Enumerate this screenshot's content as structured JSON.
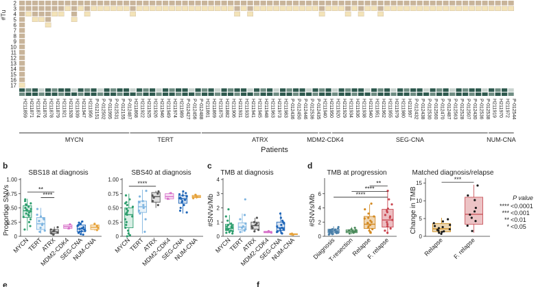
{
  "figure": {
    "heatmap": {
      "row_axis_label": "#Tu",
      "row_numbers": [
        "2",
        "3",
        "4",
        "5",
        "6",
        "7",
        "8",
        "9",
        "10",
        "11",
        "12",
        "13",
        "14",
        "15",
        "16",
        "17"
      ],
      "xlabel": "Patients",
      "colors": {
        "tan": "#c8b49a",
        "light": "#f3e3b8",
        "dark": "#2f5a4f",
        "mid": "#6f8d83",
        "pale": "#c9d3cf"
      },
      "groups": [
        {
          "name": "MYCN",
          "patients": [
            "H211859",
            "H211871",
            "H211874",
            "H211876",
            "H211878",
            "H211879",
            "H211921",
            "H211928",
            "H211939",
            "H211947",
            "H211956",
            "P-012151",
            "P-012502",
            "P-011995",
            "P-012531",
            "P-012155",
            "P-012487"
          ],
          "tumors": [
            16,
            3,
            4,
            4,
            5,
            3,
            3,
            2,
            4,
            2,
            3,
            2,
            2,
            2,
            2,
            2,
            2
          ]
        },
        {
          "name": "TERT",
          "patients": [
            "H211868",
            "H211922",
            "H211925",
            "H211926",
            "H211946",
            "H211949",
            "H211974",
            "H211989",
            "P-012427",
            "P-012456",
            "P-012488"
          ],
          "tumors": [
            3,
            2,
            2,
            2,
            2,
            2,
            2,
            2,
            2,
            2,
            2
          ]
        },
        {
          "name": "ATRX",
          "patients": [
            "H211861",
            "H211869",
            "H211875",
            "H211882",
            "H211906",
            "H211931",
            "H211933",
            "H211941",
            "H211945",
            "H211948",
            "H211963",
            "H211973",
            "H211983",
            "P-012436",
            "P-012450",
            "P-012446",
            "P-012536",
            "P-012435"
          ],
          "tumors": [
            2,
            2,
            2,
            2,
            2,
            3,
            2,
            3,
            2,
            2,
            2,
            2,
            2,
            2,
            2,
            2,
            2,
            2
          ]
        },
        {
          "name": "MDM2-CDK4",
          "patients": [
            "H211940",
            "H211950"
          ],
          "tumors": [
            3,
            2
          ]
        },
        {
          "name": "SEG-CNA",
          "patients": [
            "H211920",
            "H211929",
            "H211934",
            "H211936",
            "H211938",
            "H211940",
            "H211951",
            "H211962",
            "H211955",
            "H211979",
            "H211980",
            "H211997",
            "P-012432",
            "P-012438",
            "P-012530",
            "P-012560",
            "P-012470",
            "P-012487",
            "P-012563",
            "P-012528",
            "P-012507",
            "P-012430",
            "P-012536",
            "P-012538"
          ],
          "tumors": [
            2,
            2,
            3,
            2,
            3,
            2,
            2,
            3,
            2,
            2,
            2,
            2,
            2,
            2,
            2,
            2,
            2,
            2,
            2,
            2,
            2,
            2,
            2,
            2
          ]
        },
        {
          "name": "NUM-CNA",
          "patients": [
            "H211919",
            "H211970",
            "H211972",
            "P-012544"
          ],
          "tumors": [
            2,
            2,
            2,
            2
          ]
        }
      ]
    },
    "panels": [
      {
        "letter": "b",
        "title": "SBS18 at diagnosis",
        "ylabel": "Proportion SNVs"
      },
      {
        "letter": "",
        "title": "SBS40 at diagnosis",
        "ylabel": ""
      },
      {
        "letter": "c",
        "title": "TMB at diagnosis",
        "ylabel": "#SNVs/Mb"
      },
      {
        "letter": "d",
        "title": "TMB at progression",
        "ylabel": "#SNVs/Mb"
      },
      {
        "letter": "",
        "title": "Matched diagnosis/relapse",
        "ylabel": "Change in TMB"
      }
    ],
    "legend": {
      "title": "P value",
      "entries": [
        {
          "stars": "****",
          "label": "<0.0001"
        },
        {
          "stars": "***",
          "label": "<0.001"
        },
        {
          "stars": "**",
          "label": "<0.01"
        },
        {
          "stars": "*",
          "label": "<0.05"
        }
      ]
    },
    "bottom_letters": [
      "e",
      "f"
    ]
  },
  "chart_data": [
    {
      "type": "box",
      "title": "SBS18 at diagnosis",
      "ylabel": "Proportion SNVs",
      "categories": [
        "MYCN",
        "TERT",
        "ATRX",
        "MDM2-CDK4",
        "SEG-CNA",
        "NUM-CNA"
      ],
      "colors": [
        "#2e9e6e",
        "#7fb5e0",
        "#555555",
        "#d66ec8",
        "#1f66b8",
        "#e6a23a"
      ],
      "ylim": [
        0,
        1.0
      ],
      "yticks": [
        0,
        0.25,
        0.5,
        0.75,
        1.0
      ],
      "ytick_labels": [
        "0",
        "0.25",
        "0.50",
        "0.75",
        "1.00"
      ],
      "boxes": [
        {
          "q1": 0.33,
          "median": 0.45,
          "q3": 0.54,
          "lo": 0.1,
          "hi": 0.66
        },
        {
          "q1": 0.12,
          "median": 0.22,
          "q3": 0.33,
          "lo": 0.05,
          "hi": 0.5
        },
        {
          "q1": 0.05,
          "median": 0.08,
          "q3": 0.12,
          "lo": 0.02,
          "hi": 0.17
        },
        {
          "q1": 0.14,
          "median": 0.17,
          "q3": 0.2,
          "lo": 0.12,
          "hi": 0.21
        },
        {
          "q1": 0.08,
          "median": 0.13,
          "q3": 0.2,
          "lo": 0.02,
          "hi": 0.27
        },
        {
          "q1": 0.12,
          "median": 0.16,
          "q3": 0.2,
          "lo": 0.1,
          "hi": 0.22
        }
      ],
      "points": [
        [
          0.62,
          0.58,
          0.55,
          0.52,
          0.5,
          0.48,
          0.47,
          0.46,
          0.45,
          0.44,
          0.42,
          0.4,
          0.38,
          0.36,
          0.34,
          0.3,
          0.25,
          0.18,
          0.12,
          0.65,
          0.56
        ],
        [
          0.48,
          0.35,
          0.3,
          0.27,
          0.22,
          0.2,
          0.15,
          0.1,
          0.08,
          0.38,
          0.32
        ],
        [
          0.16,
          0.12,
          0.09,
          0.07,
          0.05,
          0.03,
          0.11
        ],
        [
          0.21,
          0.14
        ],
        [
          0.26,
          0.24,
          0.22,
          0.2,
          0.18,
          0.16,
          0.14,
          0.12,
          0.1,
          0.08,
          0.06,
          0.04,
          0.03,
          0.13,
          0.09
        ],
        [
          0.22,
          0.18,
          0.15,
          0.11
        ]
      ],
      "significance": [
        {
          "from": 0,
          "to": 2,
          "label": "**",
          "y": 0.78
        },
        {
          "from": 1,
          "to": 2,
          "label": "****",
          "y": 0.68
        }
      ]
    },
    {
      "type": "box",
      "title": "SBS40 at diagnosis",
      "ylabel": "",
      "categories": [
        "MYCN",
        "TERT",
        "ATRX",
        "MDM2-CDK4",
        "SEG-CNA",
        "NUM-CNA"
      ],
      "colors": [
        "#2e9e6e",
        "#7fb5e0",
        "#555555",
        "#d66ec8",
        "#1f66b8",
        "#e6a23a"
      ],
      "ylim": [
        0,
        1.0
      ],
      "yticks": [
        0,
        0.25,
        0.5,
        0.75,
        1.0
      ],
      "ytick_labels": [
        "0",
        "0.25",
        "0.50",
        "0.75",
        "1.00"
      ],
      "boxes": [
        {
          "q1": 0.15,
          "median": 0.38,
          "q3": 0.5,
          "lo": 0.0,
          "hi": 0.75
        },
        {
          "q1": 0.42,
          "median": 0.52,
          "q3": 0.62,
          "lo": 0.05,
          "hi": 0.82
        },
        {
          "q1": 0.6,
          "median": 0.7,
          "q3": 0.77,
          "lo": 0.5,
          "hi": 0.8
        },
        {
          "q1": 0.66,
          "median": 0.7,
          "q3": 0.75,
          "lo": 0.64,
          "hi": 0.77
        },
        {
          "q1": 0.58,
          "median": 0.66,
          "q3": 0.72,
          "lo": 0.4,
          "hi": 0.8
        },
        {
          "q1": 0.68,
          "median": 0.7,
          "q3": 0.72,
          "lo": 0.66,
          "hi": 0.74
        }
      ],
      "points": [
        [
          0.72,
          0.65,
          0.58,
          0.52,
          0.48,
          0.45,
          0.4,
          0.38,
          0.35,
          0.3,
          0.25,
          0.2,
          0.15,
          0.1,
          0.05,
          0.02,
          0.55,
          0.42,
          0.6,
          0.0
        ],
        [
          0.8,
          0.7,
          0.62,
          0.55,
          0.5,
          0.45,
          0.4,
          0.3,
          0.08,
          0.6
        ],
        [
          0.79,
          0.75,
          0.72,
          0.68,
          0.62,
          0.55
        ],
        [
          0.76,
          0.66
        ],
        [
          0.79,
          0.76,
          0.74,
          0.72,
          0.7,
          0.68,
          0.66,
          0.64,
          0.62,
          0.6,
          0.55,
          0.5,
          0.45,
          0.42,
          0.71,
          0.67
        ],
        [
          0.73,
          0.71,
          0.69,
          0.67
        ]
      ],
      "significance": [
        {
          "from": 0,
          "to": 2,
          "label": "****",
          "y": 0.88
        }
      ]
    },
    {
      "type": "box",
      "title": "TMB at diagnosis",
      "ylabel": "#SNVs/Mb",
      "categories": [
        "MYCN",
        "TERT",
        "ATRX",
        "MDM2-CDK4",
        "SEG-CNA",
        "NUM-CNA"
      ],
      "colors": [
        "#2e9e6e",
        "#7fb5e0",
        "#555555",
        "#d66ec8",
        "#1f66b8",
        "#e6a23a"
      ],
      "ylim": [
        0,
        4
      ],
      "yticks": [
        0,
        1,
        2,
        3,
        4
      ],
      "ytick_labels": [
        "0",
        "1",
        "2",
        "3",
        "4"
      ],
      "boxes": [
        {
          "q1": 0.4,
          "median": 0.55,
          "q3": 0.85,
          "lo": 0.2,
          "hi": 1.5
        },
        {
          "q1": 0.45,
          "median": 0.65,
          "q3": 0.95,
          "lo": 0.25,
          "hi": 1.6
        },
        {
          "q1": 0.5,
          "median": 0.75,
          "q3": 1.0,
          "lo": 0.3,
          "hi": 1.3
        },
        {
          "q1": 0.25,
          "median": 0.3,
          "q3": 0.35,
          "lo": 0.22,
          "hi": 0.38
        },
        {
          "q1": 0.4,
          "median": 0.6,
          "q3": 1.0,
          "lo": 0.2,
          "hi": 1.7
        },
        {
          "q1": 0.12,
          "median": 0.15,
          "q3": 0.18,
          "lo": 0.1,
          "hi": 0.2
        }
      ],
      "points": [
        [
          1.4,
          1.1,
          0.9,
          0.8,
          0.7,
          0.65,
          0.6,
          0.55,
          0.5,
          0.45,
          0.4,
          0.35,
          0.3,
          0.25,
          0.2,
          1.9,
          0.75
        ],
        [
          2.6,
          1.5,
          1.2,
          0.9,
          0.7,
          0.6,
          0.5,
          0.4,
          0.3
        ],
        [
          1.3,
          1.0,
          0.9,
          0.8,
          0.7,
          0.6,
          0.45,
          0.35
        ],
        [
          0.36,
          0.26
        ],
        [
          1.6,
          1.3,
          1.1,
          1.0,
          0.9,
          0.8,
          0.7,
          0.6,
          0.5,
          0.4,
          0.35,
          0.3,
          0.25,
          0.2,
          0.55
        ],
        [
          0.19,
          0.16,
          0.14,
          0.11
        ]
      ],
      "significance": []
    },
    {
      "type": "box",
      "title": "TMB at progression",
      "ylabel": "#SNVs/Mb",
      "categories": [
        "Diagnosis",
        "T-resection",
        "Relapse",
        "F. relapse"
      ],
      "colors": [
        "#4a7fa8",
        "#4a8a5a",
        "#d38a23",
        "#c9454f"
      ],
      "ylim": [
        0,
        8
      ],
      "yticks": [
        0,
        2,
        4,
        6
      ],
      "ytick_labels": [
        "0",
        "2",
        "4",
        "6"
      ],
      "boxes": [
        {
          "q1": 0.5,
          "median": 0.75,
          "q3": 1.0,
          "lo": 0.2,
          "hi": 1.4
        },
        {
          "q1": 0.5,
          "median": 0.7,
          "q3": 0.9,
          "lo": 0.3,
          "hi": 1.3
        },
        {
          "q1": 1.1,
          "median": 1.7,
          "q3": 2.8,
          "lo": 0.4,
          "hi": 4.5
        },
        {
          "q1": 1.3,
          "median": 2.3,
          "q3": 3.8,
          "lo": 0.3,
          "hi": 6.5
        }
      ],
      "points": [
        [
          1.3,
          1.1,
          1.0,
          0.95,
          0.9,
          0.85,
          0.8,
          0.75,
          0.7,
          0.65,
          0.6,
          0.55,
          0.5,
          0.45,
          0.4,
          0.35,
          0.3,
          0.25,
          0.9,
          0.7,
          0.6
        ],
        [
          1.2,
          1.0,
          0.9,
          0.8,
          0.75,
          0.7,
          0.65,
          0.6,
          0.5,
          0.4,
          0.85
        ],
        [
          4.6,
          3.8,
          3.2,
          2.8,
          2.5,
          2.2,
          2.0,
          1.8,
          1.6,
          1.4,
          1.2,
          1.0,
          0.8,
          0.6,
          0.5,
          1.9,
          2.6
        ],
        [
          6.4,
          5.2,
          4.5,
          3.9,
          3.4,
          3.0,
          2.6,
          2.3,
          2.0,
          1.7,
          1.4,
          1.1,
          0.8,
          0.5,
          2.8,
          3.6
        ]
      ],
      "significance": [
        {
          "from": 2,
          "to": 3,
          "label": "**",
          "y": 7.1
        },
        {
          "from": 1,
          "to": 3,
          "label": "****",
          "y": 6.3
        },
        {
          "from": 0,
          "to": 3,
          "label": "****",
          "y": 5.5
        }
      ]
    },
    {
      "type": "box",
      "title": "Matched diagnosis/relapse",
      "ylabel": "Change in TMB",
      "categories": [
        "Relapse",
        "F. relapse"
      ],
      "colors": [
        "#c98a1c",
        "#c9545a"
      ],
      "ylim": [
        0,
        16
      ],
      "yticks": [
        0,
        5,
        10,
        15
      ],
      "ytick_labels": [
        "0",
        "5",
        "10",
        "15"
      ],
      "boxes": [
        {
          "q1": 1.3,
          "median": 2.1,
          "q3": 3.6,
          "lo": 0.5,
          "hi": 5.2
        },
        {
          "q1": 3.4,
          "median": 6.2,
          "q3": 11.0,
          "lo": 1.0,
          "hi": 14.5
        }
      ],
      "points": [
        [
          4.8,
          4.2,
          3.7,
          3.2,
          2.9,
          2.6,
          2.3,
          2.0,
          1.8,
          1.6,
          1.4,
          1.2,
          1.0,
          0.7
        ],
        [
          14.3,
          11.5,
          10.2,
          8.0,
          7.0,
          6.1,
          5.2,
          4.3,
          3.0,
          1.5
        ]
      ],
      "significance": [
        {
          "from": 0,
          "to": 1,
          "label": "***",
          "y": 15.2
        }
      ]
    }
  ]
}
